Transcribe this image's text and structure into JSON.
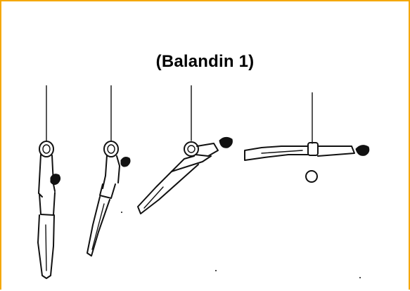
{
  "diagram": {
    "title": "(Balandin 1)",
    "figures": [
      {
        "name": "figure-1-hang"
      },
      {
        "name": "figure-2-swing"
      },
      {
        "name": "figure-3-lever-rise"
      },
      {
        "name": "figure-4-horizontal-lever"
      }
    ]
  },
  "colors": {
    "frame_border": "#f5a800",
    "ink": "#111111",
    "background": "#ffffff"
  }
}
